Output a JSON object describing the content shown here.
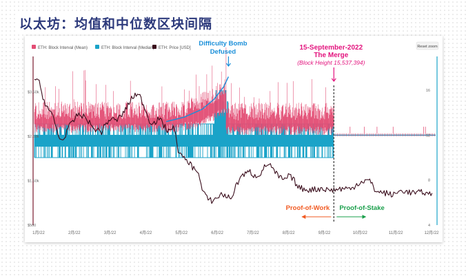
{
  "page_title": "以太坊：均值和中位数区块间隔",
  "reset_zoom_label": "Reset zoom",
  "colors": {
    "mean": "#e34d74",
    "median": "#1aa3c8",
    "price": "#3a0d1c",
    "pow": "#f15a22",
    "pos": "#1a9f4b",
    "merge": "#e3147e",
    "bomb": "#1a8fd9"
  },
  "chart_data": {
    "type": "line",
    "title": "",
    "legend": [
      {
        "name": "ETH: Block Interval (Mean)",
        "color": "#e34d74"
      },
      {
        "name": "ETH: Block Interval (Median)",
        "color": "#1aa3c8"
      },
      {
        "name": "ETH: Price [USD]",
        "color": "#3a0d1c"
      }
    ],
    "legend_position": "top-left",
    "grid": false,
    "x_ticks": [
      "1月/22",
      "2月/22",
      "3月/22",
      "4月/22",
      "5月/22",
      "6月/22",
      "7月/22",
      "8月/22",
      "9月/22",
      "10月/22",
      "11月/22",
      "12月/22"
    ],
    "xlim": [
      0,
      335
    ],
    "y_left": {
      "ticks": [
        "$500",
        "$1.50k",
        "$2.50k",
        "$3.50k"
      ],
      "values": [
        500,
        1500,
        2500,
        3500
      ],
      "range": [
        500,
        4300
      ]
    },
    "y_right": {
      "ticks": [
        "4",
        "8",
        "12",
        "16"
      ],
      "values": [
        4,
        8,
        12,
        16
      ],
      "range": [
        4,
        19
      ]
    },
    "price_series": {
      "name": "ETH: Price [USD]",
      "x": [
        0,
        4,
        8,
        12,
        16,
        20,
        24,
        28,
        32,
        36,
        40,
        44,
        48,
        52,
        56,
        60,
        64,
        68,
        72,
        76,
        80,
        84,
        88,
        92,
        96,
        100,
        104,
        108,
        112,
        116,
        120,
        124,
        128,
        132,
        136,
        140,
        144,
        148,
        152,
        156,
        160,
        164,
        168,
        172,
        176,
        180,
        184,
        188,
        192,
        196,
        200,
        204,
        208,
        212,
        216,
        220,
        224,
        228,
        232,
        236,
        240,
        244,
        248,
        252,
        256,
        260,
        264,
        268,
        272,
        276,
        280,
        284,
        288,
        292,
        296,
        300,
        304,
        308,
        312,
        316,
        320,
        324,
        328,
        332
      ],
      "y": [
        3800,
        3700,
        3300,
        3100,
        2900,
        2500,
        2400,
        2700,
        2800,
        3000,
        2950,
        2900,
        2700,
        2650,
        2600,
        2800,
        2900,
        2850,
        2950,
        3100,
        3300,
        3450,
        3400,
        3150,
        2850,
        2800,
        2900,
        2750,
        2600,
        2750,
        2200,
        2000,
        1950,
        1800,
        1750,
        1300,
        1100,
        1050,
        1100,
        1200,
        1150,
        1100,
        1350,
        1600,
        1650,
        1700,
        1600,
        1650,
        1800,
        1900,
        1700,
        1600,
        1500,
        1600,
        1550,
        1350,
        1320,
        1300,
        1300,
        1310,
        1330,
        1300,
        1290,
        1300,
        1320,
        1330,
        1300,
        1400,
        1470,
        1500,
        1500,
        1300,
        1240,
        1230,
        1200,
        1180,
        1250,
        1280,
        1240,
        1230,
        1220,
        1250,
        1200,
        1220
      ]
    },
    "mean_series": {
      "name": "ETH: Block Interval (Mean)",
      "segments": [
        {
          "x_range": [
            0,
            160
          ],
          "baseline": 13.2,
          "band": [
            12.2,
            15.0
          ]
        },
        {
          "x_range": [
            160,
            250
          ],
          "baseline": 13.6,
          "band": [
            12.0,
            14.9
          ]
        },
        {
          "x_range": [
            250,
            335
          ],
          "baseline": 12.0,
          "band": [
            11.9,
            12.3
          ]
        }
      ]
    },
    "median_series": {
      "name": "ETH: Block Interval (Median)",
      "levels": [
        {
          "x_range": [
            0,
            250
          ],
          "values": [
            10,
            11,
            12,
            13
          ]
        },
        {
          "x_range": [
            250,
            335
          ],
          "values": [
            12
          ]
        }
      ]
    },
    "difficulty_bomb_curve": {
      "x": [
        110,
        125,
        140,
        150,
        158,
        162
      ],
      "y": [
        13.2,
        13.6,
        14.3,
        15.2,
        16.3,
        17.2
      ]
    },
    "annotations": [
      {
        "id": "difficulty_bomb",
        "lines": [
          "Difficulty Bomb",
          "Defused"
        ],
        "x": 162
      },
      {
        "id": "merge",
        "lines": [
          "15-September-2022",
          "The Merge",
          "(Block Height 15,537,394)"
        ],
        "x": 250
      },
      {
        "id": "pow",
        "label": "Proof-of-Work"
      },
      {
        "id": "pos",
        "label": "Proof-of-Stake"
      }
    ]
  }
}
